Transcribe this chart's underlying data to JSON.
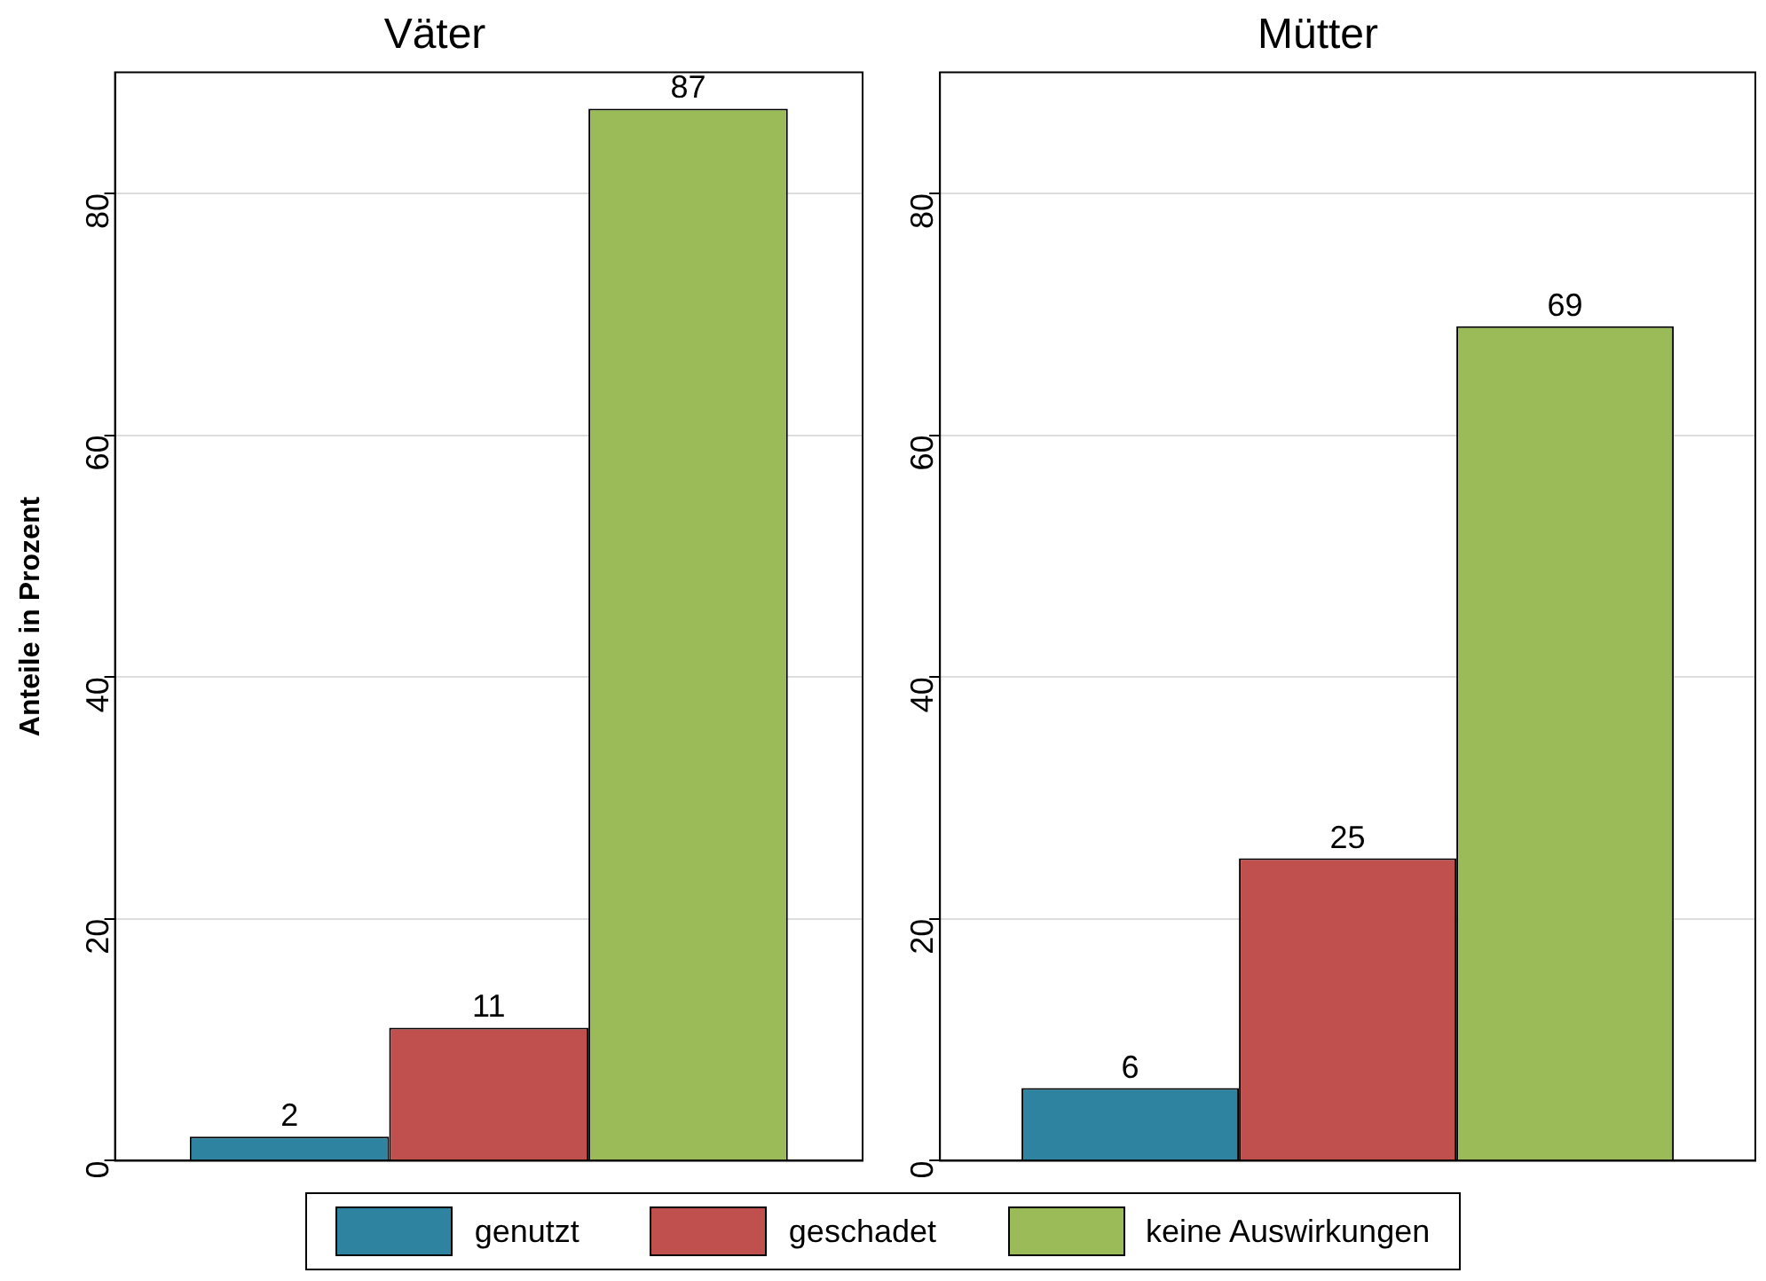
{
  "chart_data": [
    {
      "type": "bar",
      "title": "Väter",
      "ylabel": "Anteile in Prozent",
      "categories": [
        null
      ],
      "series": [
        {
          "name": "genutzt",
          "color": "#2e83a0",
          "values": [
            2
          ]
        },
        {
          "name": "geschadet",
          "color": "#c0504d",
          "values": [
            11
          ]
        },
        {
          "name": "keine Auswirkungen",
          "color": "#9bbb59",
          "values": [
            87
          ]
        }
      ],
      "ylim": [
        0,
        90
      ],
      "yticks": [
        0,
        20,
        40,
        60,
        80
      ],
      "grid": "y",
      "data_labels": true,
      "legend": "bottom"
    },
    {
      "type": "bar",
      "title": "Mütter",
      "categories": [
        null
      ],
      "series": [
        {
          "color": "#2e83a0",
          "values": [
            6
          ]
        },
        {
          "color": "#c0504d",
          "values": [
            25
          ]
        },
        {
          "color": "#9bbb59",
          "values": [
            69
          ]
        }
      ],
      "ylim": [
        0,
        90
      ],
      "yticks": [
        0,
        20,
        40,
        60,
        80
      ],
      "grid": "y",
      "data_labels": true
    }
  ]
}
